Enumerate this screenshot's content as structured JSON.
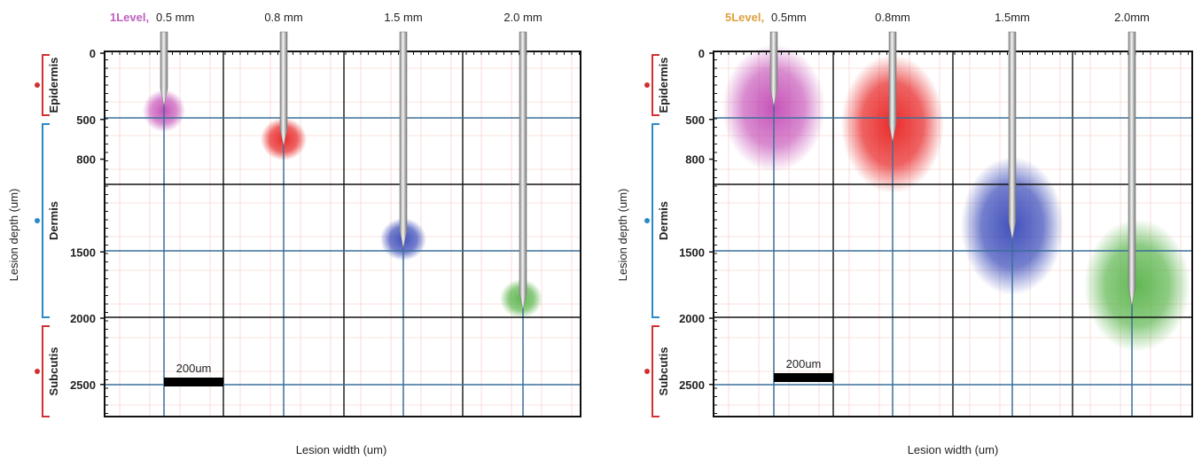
{
  "panels": [
    {
      "level": "1Level,",
      "needles": [
        "0.5 mm",
        "0.8 mm",
        "1.5 mm",
        "2.0 mm"
      ],
      "y_axis_label": "Lesion depth (um)",
      "x_axis_label": "Lesion width (um)",
      "yticks": [
        0,
        500,
        800,
        1500,
        2000,
        2500
      ],
      "layers": [
        "Epidermis",
        "Dermis",
        "Subcutis"
      ],
      "scale_bar": "200um"
    },
    {
      "level": "5Level,",
      "needles": [
        "0.5mm",
        "0.8mm",
        "1.5mm",
        "2.0mm"
      ],
      "y_axis_label": "Lesion depth (um)",
      "x_axis_label": "Lesion width (um)",
      "yticks": [
        0,
        500,
        800,
        1500,
        2000,
        2500
      ],
      "layers": [
        "Epidermis",
        "Dermis",
        "Subcutis"
      ],
      "scale_bar": "200um"
    }
  ]
}
